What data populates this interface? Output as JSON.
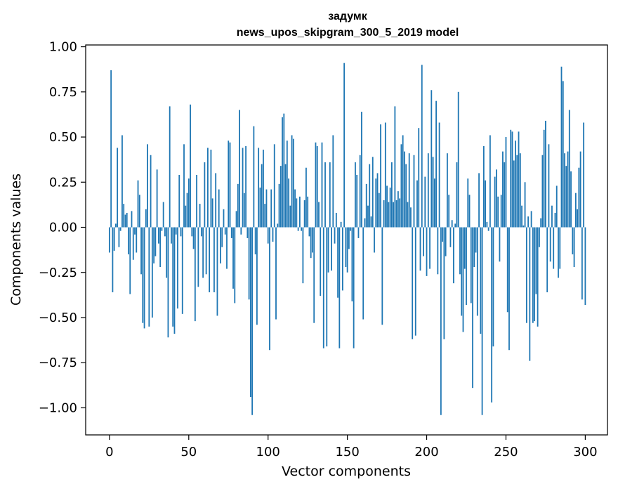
{
  "chart_data": {
    "type": "bar",
    "title_line1": "задумк",
    "title_line2": "news_upos_skipgram_300_5_2019 model",
    "xlabel": "Vector components",
    "ylabel": "Components values",
    "xlim": [
      -15,
      314
    ],
    "ylim": [
      -1.15,
      1.01
    ],
    "xticks": [
      0,
      50,
      100,
      150,
      200,
      250,
      300
    ],
    "xtick_labels": [
      "0",
      "50",
      "100",
      "150",
      "200",
      "250",
      "300"
    ],
    "yticks": [
      1.0,
      0.75,
      0.5,
      0.25,
      0.0,
      -0.25,
      -0.5,
      -0.75,
      -1.0
    ],
    "ytick_labels": [
      "1.00",
      "0.75",
      "0.50",
      "0.25",
      "0.00",
      "−0.25",
      "−0.50",
      "−0.75",
      "−1.00"
    ],
    "bar_color": "#1f77b4",
    "values": [
      -0.14,
      0.87,
      -0.36,
      -0.13,
      0.02,
      0.44,
      -0.11,
      -0.02,
      0.51,
      0.13,
      0.07,
      0.08,
      -0.15,
      -0.37,
      0.09,
      -0.18,
      -0.04,
      -0.14,
      0.26,
      0.18,
      -0.26,
      -0.53,
      -0.56,
      0.1,
      0.46,
      -0.55,
      0.4,
      -0.5,
      -0.2,
      -0.16,
      0.32,
      -0.09,
      -0.22,
      -0.02,
      0.14,
      -0.05,
      -0.28,
      -0.61,
      0.67,
      -0.09,
      -0.55,
      -0.59,
      -0.04,
      -0.45,
      0.29,
      -0.05,
      -0.48,
      0.46,
      0.12,
      0.19,
      0.27,
      0.68,
      -0.05,
      -0.12,
      -0.52,
      0.29,
      -0.33,
      0.13,
      -0.05,
      -0.28,
      0.36,
      -0.26,
      0.44,
      -0.36,
      0.43,
      0.16,
      -0.36,
      0.3,
      -0.49,
      0.21,
      -0.2,
      -0.11,
      0.1,
      -0.04,
      -0.23,
      0.48,
      0.47,
      -0.06,
      -0.34,
      -0.42,
      0.09,
      0.24,
      0.65,
      -0.04,
      0.44,
      0.19,
      0.45,
      -0.06,
      -0.4,
      -0.94,
      -1.04,
      0.56,
      -0.15,
      -0.54,
      0.44,
      0.22,
      0.35,
      0.43,
      0.13,
      0.21,
      -0.09,
      -0.68,
      0.21,
      -0.08,
      0.46,
      -0.51,
      0.02,
      0.24,
      0.34,
      0.61,
      0.63,
      0.35,
      0.48,
      0.27,
      0.12,
      0.51,
      0.49,
      0.21,
      0.16,
      -0.02,
      0.17,
      -0.02,
      -0.31,
      0.15,
      0.33,
      0.17,
      -0.05,
      -0.17,
      -0.14,
      -0.53,
      0.47,
      0.45,
      0.14,
      -0.38,
      0.47,
      -0.67,
      0.36,
      -0.66,
      -0.25,
      0.36,
      -0.24,
      0.51,
      -0.09,
      0.08,
      -0.39,
      -0.67,
      0.03,
      -0.35,
      0.91,
      -0.22,
      -0.25,
      -0.12,
      -0.02,
      -0.41,
      -0.67,
      0.36,
      0.29,
      -0.06,
      0.4,
      0.64,
      -0.51,
      0.05,
      0.24,
      0.12,
      0.35,
      0.06,
      0.39,
      -0.14,
      0.27,
      0.3,
      0.19,
      0.57,
      -0.54,
      0.15,
      0.58,
      0.23,
      0.14,
      0.22,
      0.36,
      0.14,
      0.67,
      0.15,
      0.2,
      0.16,
      0.46,
      0.51,
      0.42,
      0.35,
      0.14,
      0.41,
      0.11,
      -0.62,
      0.4,
      -0.6,
      0.26,
      0.55,
      -0.24,
      0.9,
      -0.16,
      0.28,
      -0.27,
      0.41,
      -0.23,
      0.76,
      0.39,
      0.27,
      0.7,
      -0.26,
      0.58,
      -1.04,
      -0.08,
      -0.62,
      -0.16,
      0.41,
      0.18,
      -0.11,
      0.04,
      -0.31,
      0.02,
      0.36,
      0.75,
      -0.26,
      -0.49,
      -0.58,
      -0.23,
      -0.43,
      0.27,
      0.18,
      -0.42,
      -0.89,
      -0.22,
      -0.14,
      -0.49,
      0.3,
      -0.59,
      -1.04,
      0.45,
      0.26,
      0.03,
      -0.02,
      0.51,
      -0.97,
      -0.66,
      0.28,
      0.32,
      0.17,
      -0.19,
      0.18,
      0.42,
      0.36,
      0.5,
      -0.47,
      -0.68,
      0.54,
      0.53,
      0.37,
      0.48,
      0.4,
      0.53,
      0.41,
      0.12,
      0.01,
      0.25,
      -0.53,
      0.06,
      -0.74,
      0.09,
      -0.53,
      -0.52,
      -0.37,
      -0.55,
      -0.11,
      0.05,
      0.4,
      0.54,
      0.59,
      -0.36,
      0.46,
      -0.19,
      0.12,
      -0.23,
      0.08,
      0.23,
      -0.28,
      -0.23,
      0.89,
      0.81,
      0.41,
      0.34,
      0.42,
      0.65,
      0.31,
      -0.15,
      -0.22,
      0.19,
      0.1,
      0.33,
      0.42,
      -0.4,
      0.58,
      -0.43
    ]
  }
}
